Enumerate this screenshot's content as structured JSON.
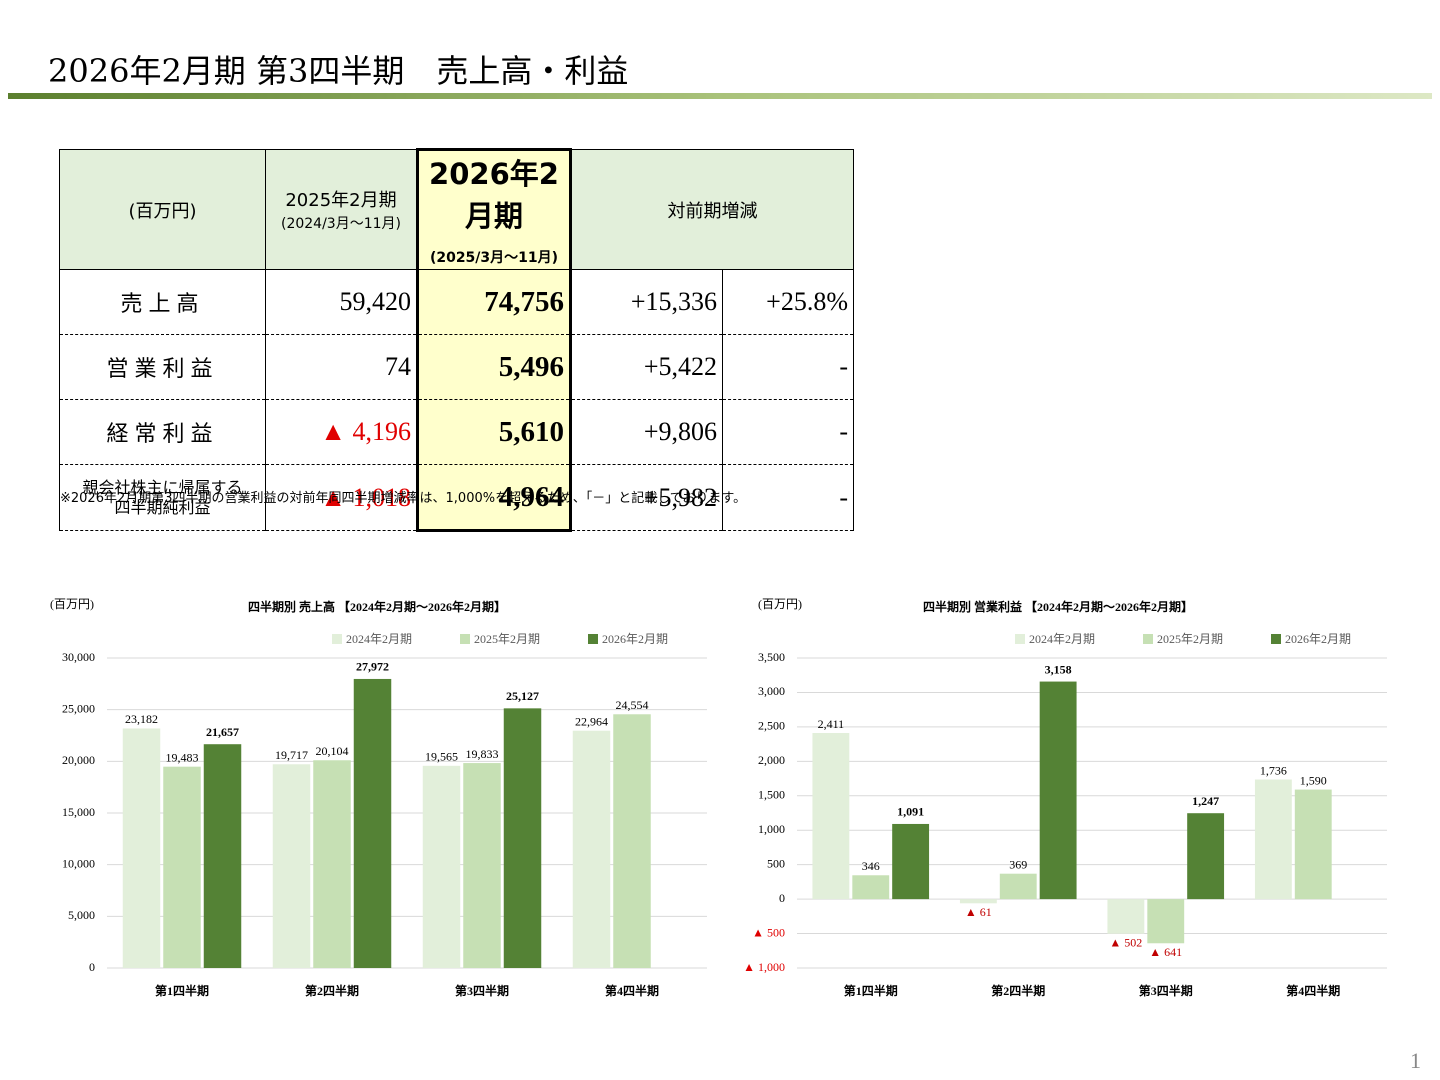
{
  "title": "2026年2月期 第3四半期　売上高・利益",
  "table": {
    "header": {
      "unit": "(百万円)",
      "prev": [
        "2025年2月期",
        "(2024/3月～11月)"
      ],
      "curr": [
        "2026年2月期",
        "(2025/3月～11月)"
      ],
      "change": "対前期増減"
    },
    "rows": [
      [
        "売上高",
        "59,420",
        "74,756",
        "+15,336",
        "+25.8%"
      ],
      [
        "営業利益",
        "74",
        "5,496",
        "+5,422",
        "-"
      ],
      [
        "経常利益",
        "▲ 4,196",
        "5,610",
        "+9,806",
        "-"
      ],
      [
        [
          "親会社株主に帰属する",
          "四半期純利益"
        ],
        "▲ 1,018",
        "4,964",
        "+5,982",
        "-"
      ]
    ]
  },
  "note": "※2026年2月期第3四半期の営業利益の対前年同四半期増減率は、1,000%を超えるため、「－」と記載しております。",
  "page_number": "1",
  "chart_data": [
    {
      "type": "bar",
      "title": "四半期別 売上高 【2024年2月期～2026年2月期】",
      "unit": "(百万円)",
      "categories": [
        "第1四半期",
        "第2四半期",
        "第3四半期",
        "第4四半期"
      ],
      "ylim": [
        0,
        30000
      ],
      "yticks": [
        0,
        {
          "value": 5000,
          "label": "5,000"
        },
        {
          "value": 10000,
          "label": "10,000"
        },
        {
          "value": 15000,
          "label": "15,000"
        },
        {
          "value": 20000,
          "label": "20,000"
        },
        {
          "value": 25000,
          "label": "25,000"
        },
        {
          "value": 30000,
          "label": "30,000"
        }
      ],
      "grid": true,
      "series": [
        {
          "name": "2024年2月期",
          "color": "#e2efda",
          "values": [
            23182,
            19717,
            19565,
            22964
          ],
          "value_labels": [
            "23,182",
            "19,717",
            "19,565",
            "22,964"
          ]
        },
        {
          "name": "2025年2月期",
          "color": "#c6e0b4",
          "values": [
            19483,
            20104,
            19833,
            24554
          ],
          "value_labels": [
            "19,483",
            "20,104",
            "19,833",
            "24,554"
          ]
        },
        {
          "name": "2026年2月期",
          "color": "#548235",
          "values": [
            21657,
            27972,
            25127,
            null
          ],
          "value_labels": [
            "21,657",
            "27,972",
            "25,127",
            null
          ]
        }
      ]
    },
    {
      "type": "bar",
      "title": "四半期別 営業利益 【2024年2月期～2026年2月期】",
      "unit": "(百万円)",
      "categories": [
        "第1四半期",
        "第2四半期",
        "第3四半期",
        "第4四半期"
      ],
      "ylim": [
        -1000,
        3500
      ],
      "yticks": [
        {
          "value": -1000,
          "label": "▲ 1,000"
        },
        {
          "value": -500,
          "label": "▲ 500"
        },
        0,
        500,
        {
          "value": 1000,
          "label": "1,000"
        },
        {
          "value": 1500,
          "label": "1,500"
        },
        {
          "value": 2000,
          "label": "2,000"
        },
        {
          "value": 2500,
          "label": "2,500"
        },
        {
          "value": 3000,
          "label": "3,000"
        },
        {
          "value": 3500,
          "label": "3,500"
        }
      ],
      "grid": true,
      "series": [
        {
          "name": "2024年2月期",
          "color": "#e2efda",
          "values": [
            2411,
            -61,
            -502,
            1736
          ],
          "value_labels": [
            "2,411",
            "▲ 61",
            "▲ 502",
            "1,736"
          ]
        },
        {
          "name": "2025年2月期",
          "color": "#c6e0b4",
          "values": [
            346,
            369,
            -641,
            1590
          ],
          "value_labels": [
            "346",
            "369",
            "▲ 641",
            "1,590"
          ]
        },
        {
          "name": "2026年2月期",
          "color": "#548235",
          "values": [
            1091,
            3158,
            1247,
            null
          ],
          "value_labels": [
            "1,091",
            "3,158",
            "1,247",
            null
          ]
        }
      ]
    }
  ]
}
